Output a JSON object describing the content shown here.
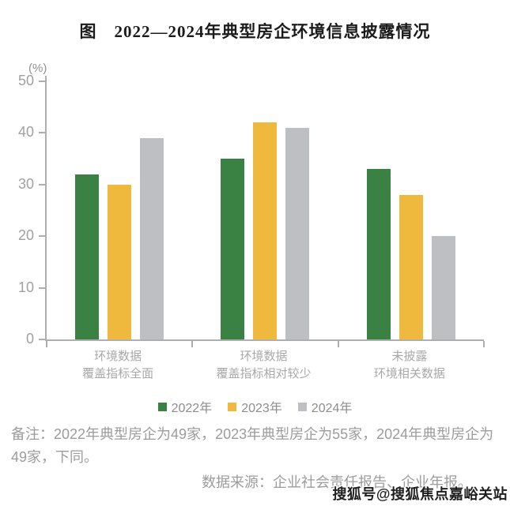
{
  "header": {
    "title": "图　2022—2024年典型房企环境信息披露情况"
  },
  "chart_data": {
    "type": "bar",
    "title": "图　2022—2024年典型房企环境信息披露情况",
    "ylabel": "(%)",
    "ylim": [
      0,
      50
    ],
    "yticks": [
      0,
      10,
      20,
      30,
      40,
      50
    ],
    "grid": false,
    "legend_position": "bottom",
    "categories": [
      [
        "环境数据",
        "覆盖指标全面"
      ],
      [
        "环境数据",
        "覆盖指标相对较少"
      ],
      [
        "未披露",
        "环境相关数据"
      ]
    ],
    "series": [
      {
        "name": "2022年",
        "color": "#3A8144",
        "values": [
          32,
          35,
          33
        ]
      },
      {
        "name": "2023年",
        "color": "#EEB93C",
        "values": [
          30,
          42,
          28
        ]
      },
      {
        "name": "2024年",
        "color": "#BDBFC3",
        "values": [
          39,
          41,
          20
        ]
      }
    ],
    "axis_color": "#AEAEAE"
  },
  "footer": {
    "note": "备注：2022年典型房企为49家，2023年典型房企为55家，2024年典型房企为49家，下同。",
    "source": "数据来源：企业社会责任报告、企业年报。",
    "watermark": "搜狐号@搜狐焦点嘉峪关站"
  }
}
